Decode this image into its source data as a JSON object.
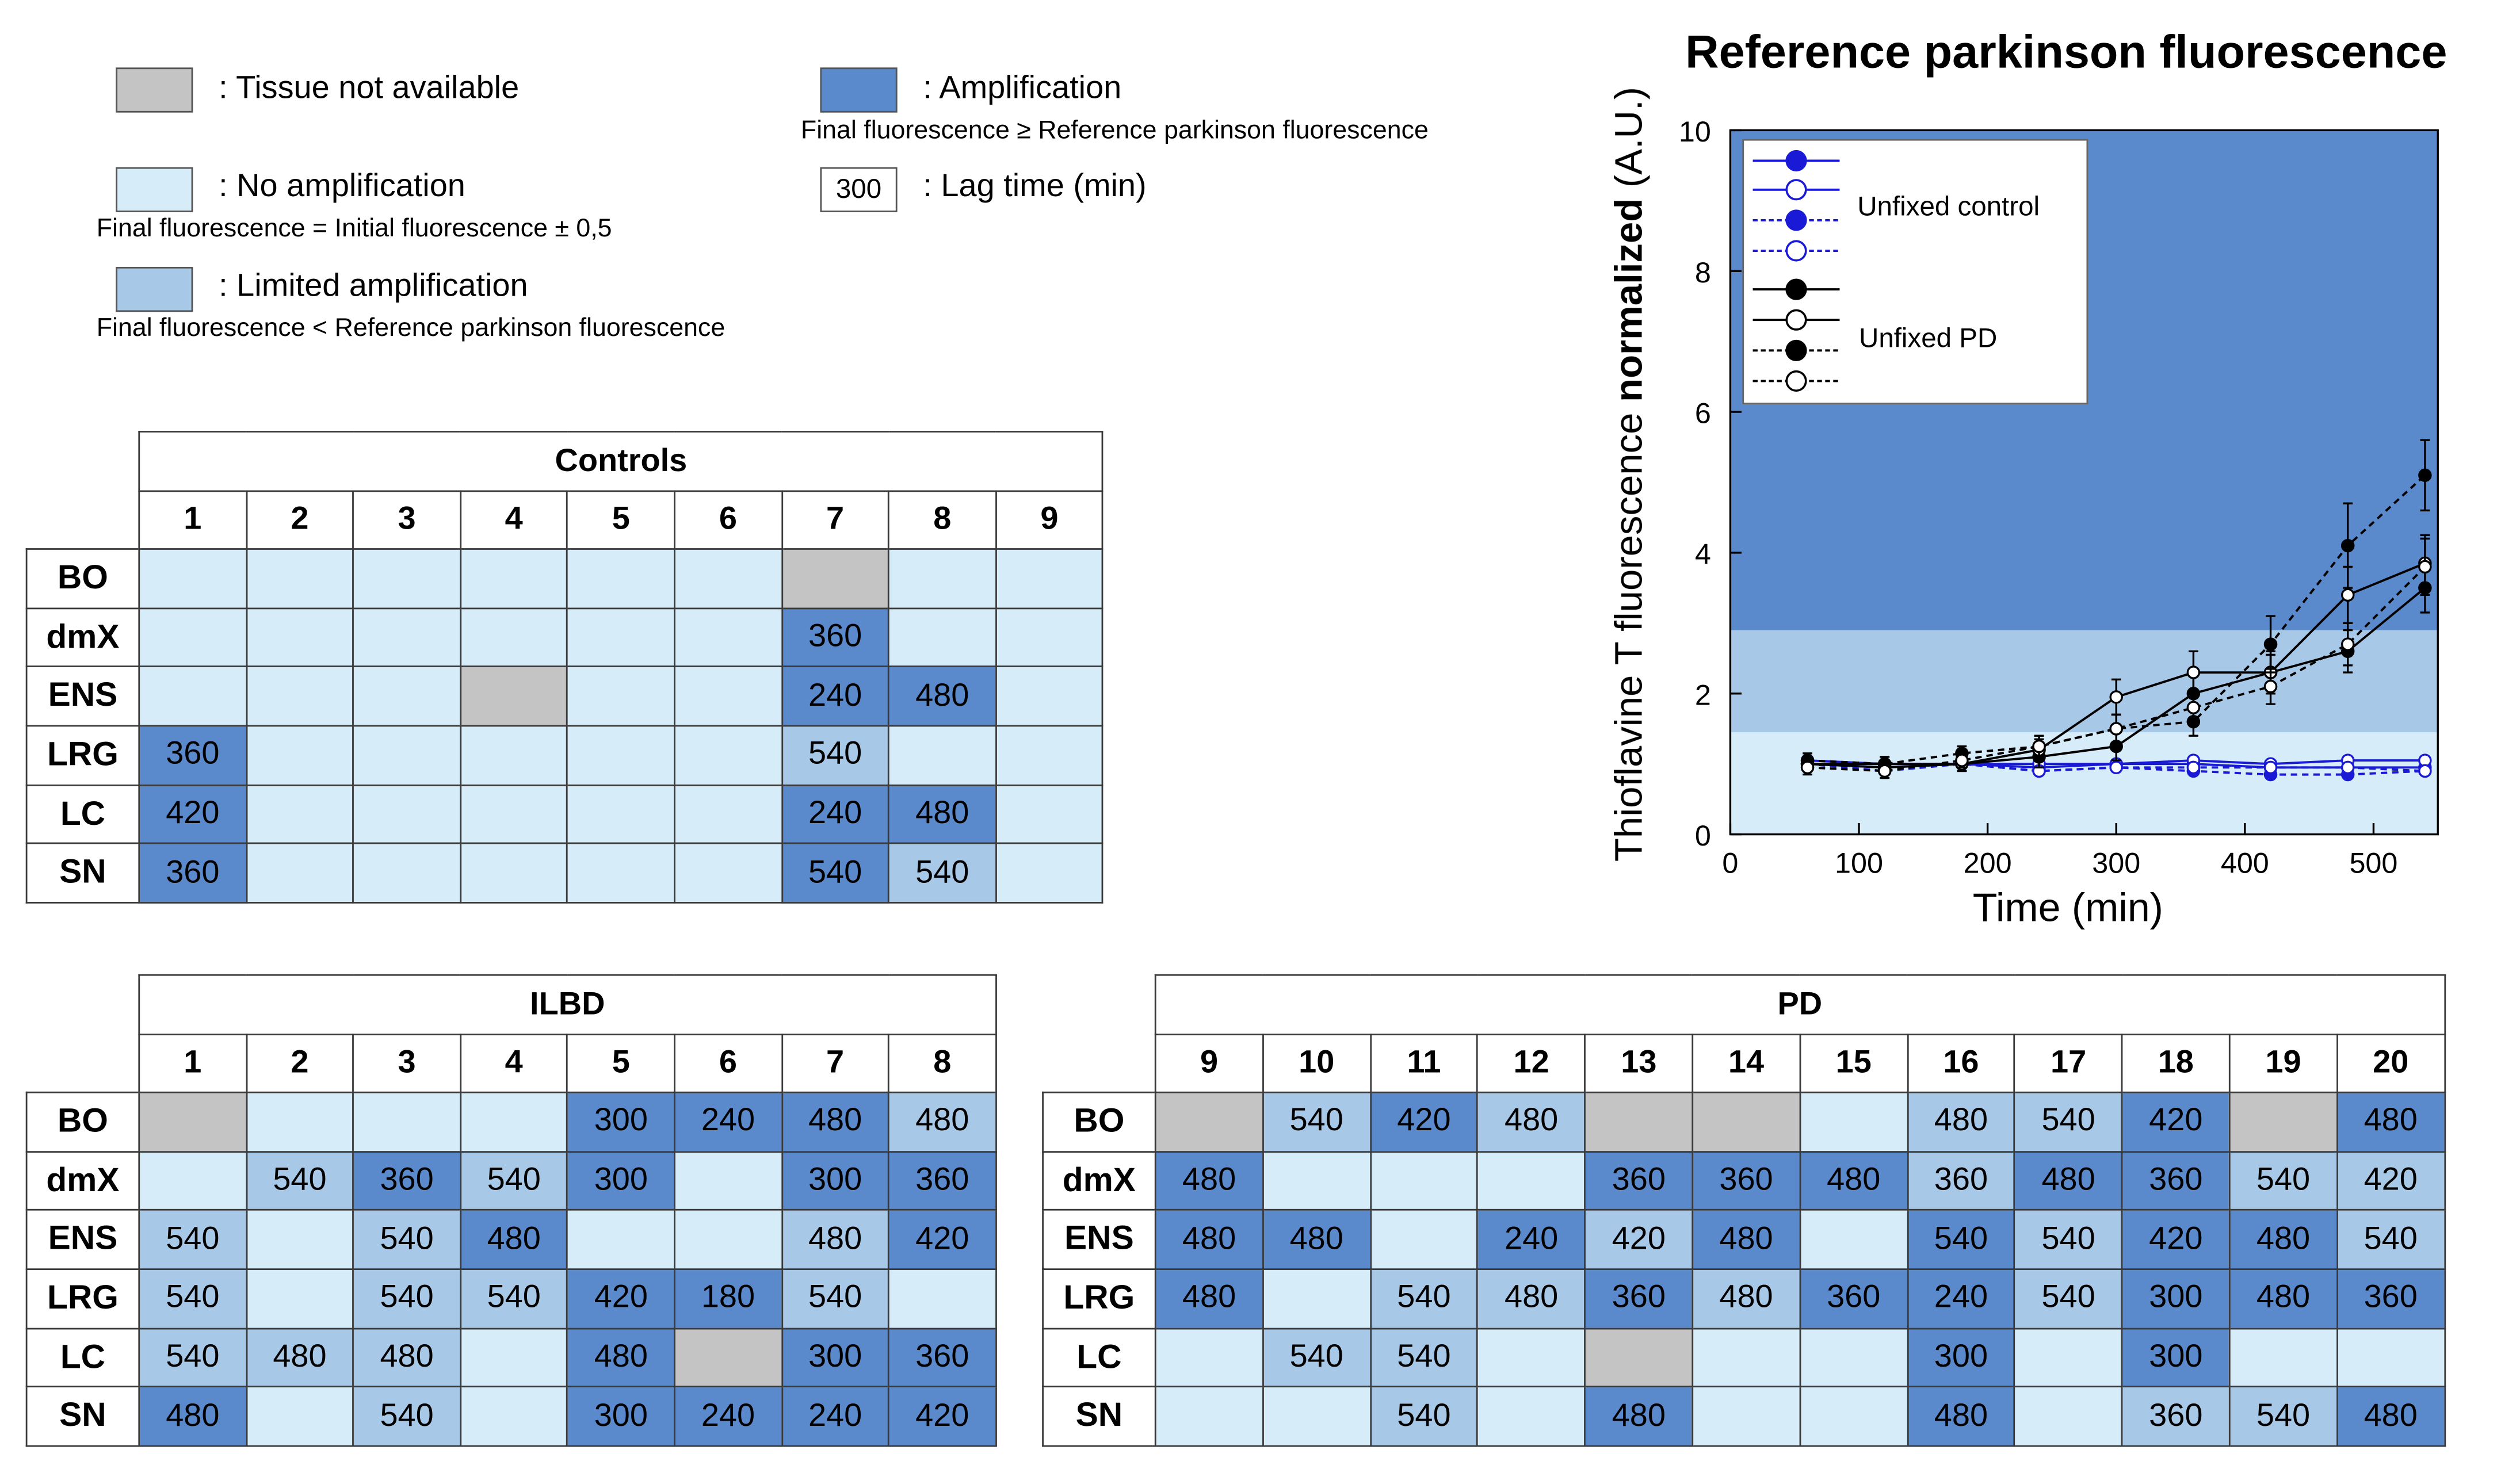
{
  "legend": {
    "not_available": {
      "label": ": Tissue not available",
      "color": "#c4c4c4"
    },
    "no_amp": {
      "label": ": No amplification",
      "sub": "Final fluorescence = Initial fluorescence ± 0,5",
      "color": "#d6ecf8"
    },
    "limited": {
      "label": ": Limited amplification",
      "sub": "Final fluorescence < Reference parkinson fluorescence",
      "color": "#a8c8e8"
    },
    "amp": {
      "label": ": Amplification",
      "sub": "Final fluorescence ≥ Reference parkinson fluorescence",
      "color": "#5a8acb"
    },
    "lag": {
      "box": "300",
      "label": ": Lag time (min)"
    }
  },
  "tables": [
    {
      "title": "Controls",
      "columns": [
        "1",
        "2",
        "3",
        "4",
        "5",
        "6",
        "7",
        "8",
        "9"
      ],
      "rows": [
        {
          "label": "BO",
          "cells": [
            [
              "n",
              ""
            ],
            [
              "n",
              ""
            ],
            [
              "n",
              ""
            ],
            [
              "n",
              ""
            ],
            [
              "n",
              ""
            ],
            [
              "n",
              ""
            ],
            [
              "x",
              ""
            ],
            [
              "n",
              ""
            ],
            [
              "n",
              ""
            ]
          ]
        },
        {
          "label": "dmX",
          "cells": [
            [
              "n",
              ""
            ],
            [
              "n",
              ""
            ],
            [
              "n",
              ""
            ],
            [
              "n",
              ""
            ],
            [
              "n",
              ""
            ],
            [
              "n",
              ""
            ],
            [
              "a",
              "360"
            ],
            [
              "n",
              ""
            ],
            [
              "n",
              ""
            ]
          ]
        },
        {
          "label": "ENS",
          "cells": [
            [
              "n",
              ""
            ],
            [
              "n",
              ""
            ],
            [
              "n",
              ""
            ],
            [
              "x",
              ""
            ],
            [
              "n",
              ""
            ],
            [
              "n",
              ""
            ],
            [
              "a",
              "240"
            ],
            [
              "a",
              "480"
            ],
            [
              "n",
              ""
            ]
          ]
        },
        {
          "label": "LRG",
          "cells": [
            [
              "a",
              "360"
            ],
            [
              "n",
              ""
            ],
            [
              "n",
              ""
            ],
            [
              "n",
              ""
            ],
            [
              "n",
              ""
            ],
            [
              "n",
              ""
            ],
            [
              "l",
              "540"
            ],
            [
              "n",
              ""
            ],
            [
              "n",
              ""
            ]
          ]
        },
        {
          "label": "LC",
          "cells": [
            [
              "a",
              "420"
            ],
            [
              "n",
              ""
            ],
            [
              "n",
              ""
            ],
            [
              "n",
              ""
            ],
            [
              "n",
              ""
            ],
            [
              "n",
              ""
            ],
            [
              "a",
              "240"
            ],
            [
              "a",
              "480"
            ],
            [
              "n",
              ""
            ]
          ]
        },
        {
          "label": "SN",
          "cells": [
            [
              "a",
              "360"
            ],
            [
              "n",
              ""
            ],
            [
              "n",
              ""
            ],
            [
              "n",
              ""
            ],
            [
              "n",
              ""
            ],
            [
              "n",
              ""
            ],
            [
              "a",
              "540"
            ],
            [
              "l",
              "540"
            ],
            [
              "n",
              ""
            ]
          ]
        }
      ]
    },
    {
      "title": "ILBD",
      "columns": [
        "1",
        "2",
        "3",
        "4",
        "5",
        "6",
        "7",
        "8"
      ],
      "rows": [
        {
          "label": "BO",
          "cells": [
            [
              "x",
              ""
            ],
            [
              "n",
              ""
            ],
            [
              "n",
              ""
            ],
            [
              "n",
              ""
            ],
            [
              "a",
              "300"
            ],
            [
              "a",
              "240"
            ],
            [
              "a",
              "480"
            ],
            [
              "l",
              "480"
            ]
          ]
        },
        {
          "label": "dmX",
          "cells": [
            [
              "n",
              ""
            ],
            [
              "l",
              "540"
            ],
            [
              "a",
              "360"
            ],
            [
              "l",
              "540"
            ],
            [
              "a",
              "300"
            ],
            [
              "n",
              ""
            ],
            [
              "a",
              "300"
            ],
            [
              "a",
              "360"
            ]
          ]
        },
        {
          "label": "ENS",
          "cells": [
            [
              "l",
              "540"
            ],
            [
              "n",
              ""
            ],
            [
              "l",
              "540"
            ],
            [
              "a",
              "480"
            ],
            [
              "n",
              ""
            ],
            [
              "n",
              ""
            ],
            [
              "l",
              "480"
            ],
            [
              "a",
              "420"
            ]
          ]
        },
        {
          "label": "LRG",
          "cells": [
            [
              "l",
              "540"
            ],
            [
              "n",
              ""
            ],
            [
              "l",
              "540"
            ],
            [
              "l",
              "540"
            ],
            [
              "a",
              "420"
            ],
            [
              "a",
              "180"
            ],
            [
              "l",
              "540"
            ],
            [
              "n",
              ""
            ]
          ]
        },
        {
          "label": "LC",
          "cells": [
            [
              "l",
              "540"
            ],
            [
              "l",
              "480"
            ],
            [
              "l",
              "480"
            ],
            [
              "n",
              ""
            ],
            [
              "a",
              "480"
            ],
            [
              "x",
              ""
            ],
            [
              "a",
              "300"
            ],
            [
              "a",
              "360"
            ]
          ]
        },
        {
          "label": "SN",
          "cells": [
            [
              "a",
              "480"
            ],
            [
              "n",
              ""
            ],
            [
              "l",
              "540"
            ],
            [
              "n",
              ""
            ],
            [
              "a",
              "300"
            ],
            [
              "a",
              "240"
            ],
            [
              "a",
              "240"
            ],
            [
              "a",
              "420"
            ]
          ]
        }
      ]
    },
    {
      "title": "PD",
      "columns": [
        "9",
        "10",
        "11",
        "12",
        "13",
        "14",
        "15",
        "16",
        "17",
        "18",
        "19",
        "20"
      ],
      "rows": [
        {
          "label": "BO",
          "cells": [
            [
              "x",
              ""
            ],
            [
              "l",
              "540"
            ],
            [
              "a",
              "420"
            ],
            [
              "l",
              "480"
            ],
            [
              "x",
              ""
            ],
            [
              "x",
              ""
            ],
            [
              "n",
              ""
            ],
            [
              "l",
              "480"
            ],
            [
              "l",
              "540"
            ],
            [
              "a",
              "420"
            ],
            [
              "x",
              ""
            ],
            [
              "a",
              "480"
            ]
          ]
        },
        {
          "label": "dmX",
          "cells": [
            [
              "a",
              "480"
            ],
            [
              "n",
              ""
            ],
            [
              "n",
              ""
            ],
            [
              "n",
              ""
            ],
            [
              "a",
              "360"
            ],
            [
              "a",
              "360"
            ],
            [
              "a",
              "480"
            ],
            [
              "l",
              "360"
            ],
            [
              "a",
              "480"
            ],
            [
              "a",
              "360"
            ],
            [
              "l",
              "540"
            ],
            [
              "l",
              "420"
            ]
          ]
        },
        {
          "label": "ENS",
          "cells": [
            [
              "a",
              "480"
            ],
            [
              "a",
              "480"
            ],
            [
              "n",
              ""
            ],
            [
              "a",
              "240"
            ],
            [
              "l",
              "420"
            ],
            [
              "a",
              "480"
            ],
            [
              "n",
              ""
            ],
            [
              "a",
              "540"
            ],
            [
              "l",
              "540"
            ],
            [
              "a",
              "420"
            ],
            [
              "a",
              "480"
            ],
            [
              "l",
              "540"
            ]
          ]
        },
        {
          "label": "LRG",
          "cells": [
            [
              "a",
              "480"
            ],
            [
              "n",
              ""
            ],
            [
              "l",
              "540"
            ],
            [
              "l",
              "480"
            ],
            [
              "a",
              "360"
            ],
            [
              "l",
              "480"
            ],
            [
              "a",
              "360"
            ],
            [
              "a",
              "240"
            ],
            [
              "l",
              "540"
            ],
            [
              "a",
              "300"
            ],
            [
              "a",
              "480"
            ],
            [
              "a",
              "360"
            ]
          ]
        },
        {
          "label": "LC",
          "cells": [
            [
              "n",
              ""
            ],
            [
              "l",
              "540"
            ],
            [
              "l",
              "540"
            ],
            [
              "n",
              ""
            ],
            [
              "x",
              ""
            ],
            [
              "n",
              ""
            ],
            [
              "n",
              ""
            ],
            [
              "a",
              "300"
            ],
            [
              "n",
              ""
            ],
            [
              "a",
              "300"
            ],
            [
              "n",
              ""
            ],
            [
              "n",
              ""
            ]
          ]
        },
        {
          "label": "SN",
          "cells": [
            [
              "n",
              ""
            ],
            [
              "n",
              ""
            ],
            [
              "l",
              "540"
            ],
            [
              "n",
              ""
            ],
            [
              "a",
              "480"
            ],
            [
              "n",
              ""
            ],
            [
              "n",
              ""
            ],
            [
              "a",
              "480"
            ],
            [
              "n",
              ""
            ],
            [
              "l",
              "360"
            ],
            [
              "l",
              "540"
            ],
            [
              "a",
              "480"
            ]
          ]
        }
      ]
    }
  ],
  "chart_data": {
    "type": "line",
    "title": "Reference parkinson fluorescence",
    "ylabel_normal": "Thioflavine T fluorescence ",
    "ylabel_bold": "normalized",
    "ylabel_units": " (A.U.)",
    "xlabel": "Time (min)",
    "xlim": [
      0,
      550
    ],
    "ylim": [
      0,
      10
    ],
    "xticks": [
      0,
      100,
      200,
      300,
      400,
      500
    ],
    "yticks": [
      0,
      2,
      4,
      6,
      8,
      10
    ],
    "grid": false,
    "legend_position": "top-left",
    "background_bands": [
      {
        "from": 0,
        "to": 1.45,
        "color": "#d6ecf8"
      },
      {
        "from": 1.45,
        "to": 2.9,
        "color": "#a8c8e8"
      },
      {
        "from": 2.9,
        "to": 10,
        "color": "#5a8acb"
      }
    ],
    "x": [
      60,
      120,
      180,
      240,
      300,
      360,
      420,
      480,
      540
    ],
    "legend_groups": [
      {
        "label": "Unfixed control",
        "color": "#1a1ad6"
      },
      {
        "label": "Unfixed PD",
        "color": "#000000"
      }
    ],
    "series": [
      {
        "group": 0,
        "marker": "filled",
        "dash": false,
        "color": "#1a1ad6",
        "values": [
          1.0,
          0.95,
          1.0,
          0.95,
          1.0,
          1.0,
          0.95,
          0.95,
          0.95
        ],
        "err": [
          0.05,
          0.05,
          0.05,
          0.05,
          0.05,
          0.05,
          0.05,
          0.05,
          0.05
        ]
      },
      {
        "group": 0,
        "marker": "open",
        "dash": false,
        "color": "#1a1ad6",
        "values": [
          1.05,
          1.0,
          1.0,
          1.0,
          1.0,
          1.05,
          1.0,
          1.05,
          1.05
        ],
        "err": [
          0.05,
          0.05,
          0.05,
          0.05,
          0.05,
          0.05,
          0.05,
          0.05,
          0.05
        ]
      },
      {
        "group": 0,
        "marker": "filled",
        "dash": true,
        "color": "#1a1ad6",
        "values": [
          1.0,
          0.95,
          1.0,
          0.9,
          0.95,
          0.9,
          0.85,
          0.85,
          0.9
        ],
        "err": [
          0.05,
          0.05,
          0.05,
          0.05,
          0.05,
          0.05,
          0.05,
          0.05,
          0.05
        ]
      },
      {
        "group": 0,
        "marker": "open",
        "dash": true,
        "color": "#1a1ad6",
        "values": [
          1.0,
          0.9,
          1.0,
          0.9,
          0.95,
          0.95,
          0.95,
          0.95,
          0.9
        ],
        "err": [
          0.05,
          0.05,
          0.05,
          0.05,
          0.05,
          0.05,
          0.05,
          0.05,
          0.05
        ]
      },
      {
        "group": 1,
        "marker": "filled",
        "dash": false,
        "color": "#000000",
        "values": [
          1.0,
          0.95,
          1.0,
          1.1,
          1.25,
          2.0,
          2.3,
          2.6,
          3.5
        ],
        "err": [
          0.1,
          0.1,
          0.1,
          0.15,
          0.2,
          0.25,
          0.25,
          0.3,
          0.35
        ]
      },
      {
        "group": 1,
        "marker": "open",
        "dash": false,
        "color": "#000000",
        "values": [
          1.0,
          1.0,
          1.0,
          1.2,
          1.95,
          2.3,
          2.3,
          3.4,
          3.85
        ],
        "err": [
          0.1,
          0.1,
          0.1,
          0.15,
          0.25,
          0.3,
          0.3,
          0.4,
          0.4
        ]
      },
      {
        "group": 1,
        "marker": "filled",
        "dash": true,
        "color": "#000000",
        "values": [
          1.05,
          1.0,
          1.15,
          1.25,
          1.5,
          1.6,
          2.7,
          4.1,
          5.1
        ],
        "err": [
          0.1,
          0.1,
          0.1,
          0.15,
          0.2,
          0.2,
          0.4,
          0.6,
          0.5
        ]
      },
      {
        "group": 1,
        "marker": "open",
        "dash": true,
        "color": "#000000",
        "values": [
          0.95,
          0.9,
          1.05,
          1.25,
          1.5,
          1.8,
          2.1,
          2.7,
          3.8
        ],
        "err": [
          0.1,
          0.1,
          0.1,
          0.15,
          0.2,
          0.25,
          0.25,
          0.3,
          0.4
        ]
      }
    ]
  }
}
